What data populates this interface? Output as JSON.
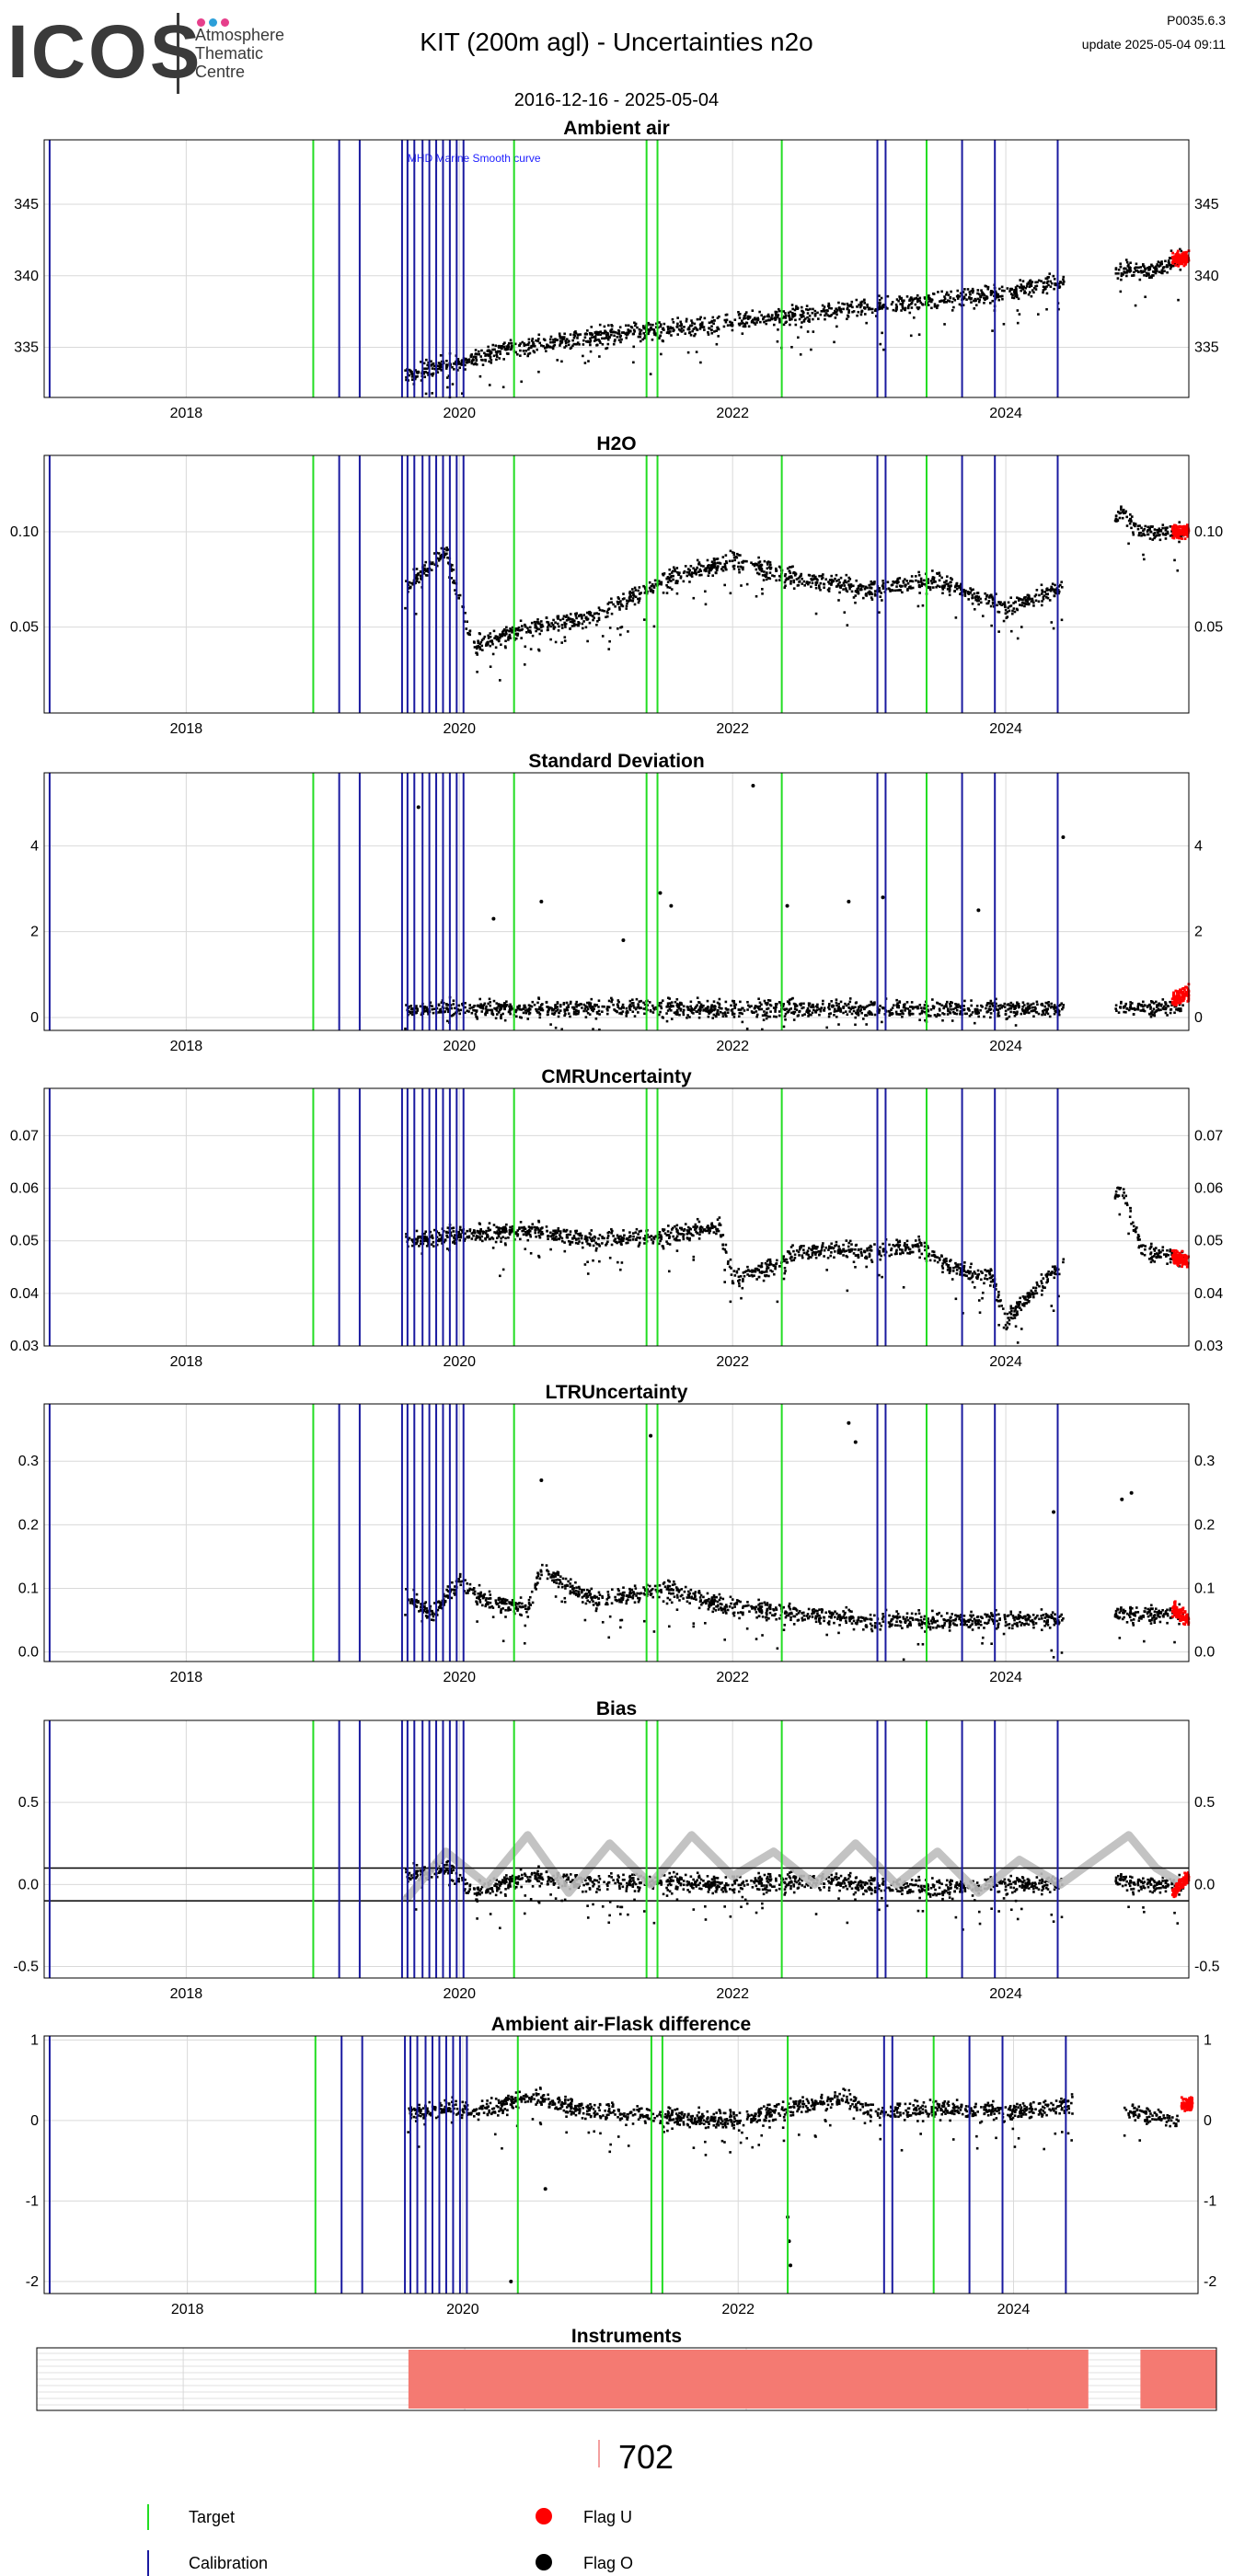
{
  "header": {
    "logo_text": "ICOS",
    "logo_subtitle": [
      "Atmosphere",
      "Thematic",
      "Centre"
    ],
    "logo_dot_colors": [
      "#e63f8b",
      "#2c9fd9",
      "#e63f8b"
    ],
    "title": "KIT  (200m agl) - Uncertainties n2o",
    "date_range": "2016-12-16 - 2025-05-04",
    "version": "P0035.6.3",
    "update": "update  2025-05-04 09:11"
  },
  "colors": {
    "target": "#22dd22",
    "calibration": "#1a1aa0",
    "flag_u": "#ff0000",
    "flag_o": "#000000",
    "smooth": "#bdbdbd",
    "instrument": "#f47a72",
    "grid": "#d9d9d9"
  },
  "x_axis": {
    "start": 2016.96,
    "end": 2025.34,
    "ticks": [
      2018,
      2020,
      2022,
      2024
    ],
    "tick_labels": [
      "2018",
      "2020",
      "2022",
      "2024"
    ]
  },
  "events": {
    "target": [
      2018.93,
      2020.4,
      2021.37,
      2021.45,
      2022.36,
      2023.42
    ],
    "calibration": [
      2017.0,
      2019.12,
      2019.27,
      2019.58,
      2019.62,
      2019.67,
      2019.73,
      2019.78,
      2019.83,
      2019.88,
      2019.93,
      2019.98,
      2020.03,
      2023.06,
      2023.12,
      2023.68,
      2023.92,
      2024.38
    ]
  },
  "chart_data": [
    {
      "type": "scatter",
      "title": "Ambient air",
      "ylim": [
        331.5,
        349.5
      ],
      "yticks": [
        335,
        340,
        345
      ],
      "ytick_labels": [
        "335",
        "340",
        "345"
      ],
      "annotation": "MHD Marine Smooth curve",
      "x": [
        2019.6,
        2019.8,
        2020.0,
        2020.3,
        2020.6,
        2021.0,
        2021.5,
        2022.0,
        2022.5,
        2023.0,
        2023.5,
        2024.0,
        2024.4,
        2024.85,
        2025.1,
        2025.2,
        2025.3
      ],
      "y": [
        333.0,
        333.5,
        333.9,
        334.8,
        335.2,
        335.8,
        336.2,
        336.8,
        337.3,
        337.8,
        338.3,
        338.8,
        339.6,
        340.5,
        340.3,
        341.0,
        341.2
      ],
      "flag_u_x": [
        2025.22,
        2025.34
      ],
      "flag_u_y": [
        341.0,
        341.3
      ]
    },
    {
      "type": "scatter",
      "title": "H2O",
      "ylim": [
        0.005,
        0.14
      ],
      "yticks": [
        0.05,
        0.1
      ],
      "ytick_labels": [
        "0.05",
        "0.10"
      ],
      "x": [
        2019.6,
        2019.9,
        2020.1,
        2020.5,
        2021.0,
        2021.5,
        2022.0,
        2022.5,
        2023.0,
        2023.5,
        2024.0,
        2024.4,
        2024.85,
        2025.0,
        2025.3
      ],
      "y": [
        0.07,
        0.09,
        0.04,
        0.05,
        0.055,
        0.075,
        0.085,
        0.075,
        0.07,
        0.075,
        0.06,
        0.07,
        0.11,
        0.1,
        0.1
      ],
      "flag_u_x": [
        2025.22,
        2025.34
      ],
      "flag_u_y": [
        0.1,
        0.1
      ]
    },
    {
      "type": "scatter",
      "title": "Standard Deviation",
      "ylim": [
        -0.3,
        5.7
      ],
      "yticks": [
        0,
        2,
        4
      ],
      "ytick_labels": [
        "0",
        "2",
        "4"
      ],
      "x": [
        2019.6,
        2020.0,
        2020.5,
        2021.0,
        2021.5,
        2022.0,
        2022.5,
        2023.0,
        2023.5,
        2024.0,
        2024.4,
        2024.9,
        2025.3
      ],
      "y": [
        0.2,
        0.2,
        0.2,
        0.2,
        0.25,
        0.2,
        0.2,
        0.2,
        0.2,
        0.2,
        0.2,
        0.2,
        0.3
      ],
      "outliers_x": [
        2019.7,
        2020.25,
        2020.6,
        2021.2,
        2021.47,
        2021.55,
        2022.15,
        2022.4,
        2022.85,
        2023.1,
        2023.8,
        2024.42
      ],
      "outliers_y": [
        4.9,
        2.3,
        2.7,
        1.8,
        2.9,
        2.6,
        5.4,
        2.6,
        2.7,
        2.8,
        2.5,
        4.2
      ],
      "flag_u_x": [
        2025.22,
        2025.34
      ],
      "flag_u_y": [
        0.4,
        0.6
      ]
    },
    {
      "type": "scatter",
      "title": "CMRUncertainty",
      "ylim": [
        0.03,
        0.079
      ],
      "yticks": [
        0.03,
        0.04,
        0.05,
        0.06,
        0.07
      ],
      "ytick_labels": [
        "0.03",
        "0.04",
        "0.05",
        "0.06",
        "0.07"
      ],
      "x": [
        2019.6,
        2020.0,
        2020.5,
        2021.0,
        2021.5,
        2021.9,
        2022.0,
        2022.3,
        2022.5,
        2023.0,
        2023.4,
        2023.6,
        2023.9,
        2024.0,
        2024.4,
        2024.85,
        2025.0,
        2025.3
      ],
      "y": [
        0.05,
        0.051,
        0.052,
        0.05,
        0.051,
        0.053,
        0.043,
        0.045,
        0.048,
        0.048,
        0.049,
        0.045,
        0.043,
        0.035,
        0.045,
        0.06,
        0.048,
        0.047
      ],
      "flag_u_x": [
        2025.22,
        2025.34
      ],
      "flag_u_y": [
        0.047,
        0.046
      ]
    },
    {
      "type": "scatter",
      "title": "LTRUncertainty",
      "ylim": [
        -0.015,
        0.39
      ],
      "yticks": [
        0.0,
        0.1,
        0.2,
        0.3
      ],
      "ytick_labels": [
        "0.0",
        "0.1",
        "0.2",
        "0.3"
      ],
      "x": [
        2019.6,
        2019.8,
        2020.0,
        2020.2,
        2020.5,
        2020.6,
        2021.0,
        2021.5,
        2022.0,
        2022.5,
        2023.0,
        2023.5,
        2024.0,
        2024.4,
        2024.9,
        2025.3
      ],
      "y": [
        0.09,
        0.06,
        0.11,
        0.08,
        0.07,
        0.13,
        0.08,
        0.1,
        0.07,
        0.06,
        0.05,
        0.05,
        0.05,
        0.05,
        0.06,
        0.06
      ],
      "outliers_x": [
        2020.6,
        2021.4,
        2022.85,
        2022.9,
        2024.35,
        2024.85,
        2024.92
      ],
      "outliers_y": [
        0.27,
        0.34,
        0.36,
        0.33,
        0.22,
        0.24,
        0.25
      ],
      "flag_u_x": [
        2025.22,
        2025.34
      ],
      "flag_u_y": [
        0.07,
        0.05
      ]
    },
    {
      "type": "scatter",
      "title": "Bias",
      "ylim": [
        -0.57,
        1.0
      ],
      "yticks": [
        -0.5,
        0.0,
        0.5
      ],
      "ytick_labels": [
        "-0.5",
        "0.0",
        "0.5"
      ],
      "hlines": [
        -0.1,
        0.1
      ],
      "x": [
        2019.6,
        2019.9,
        2020.1,
        2020.5,
        2021.0,
        2021.5,
        2022.0,
        2022.5,
        2023.0,
        2023.5,
        2024.0,
        2024.4,
        2024.85,
        2025.0,
        2025.3
      ],
      "y": [
        0.05,
        0.1,
        -0.05,
        0.05,
        0.0,
        0.02,
        0.0,
        0.02,
        0.0,
        -0.02,
        0.0,
        0.0,
        0.02,
        0.0,
        0.0
      ],
      "smooth_x": [
        2019.6,
        2019.9,
        2020.2,
        2020.5,
        2020.8,
        2021.1,
        2021.4,
        2021.7,
        2022.0,
        2022.3,
        2022.6,
        2022.9,
        2023.2,
        2023.5,
        2023.8,
        2024.1,
        2024.4,
        2024.9,
        2025.1,
        2025.3
      ],
      "smooth_y": [
        -0.1,
        0.2,
        0.0,
        0.3,
        -0.05,
        0.25,
        0.0,
        0.3,
        0.05,
        0.2,
        0.0,
        0.25,
        0.0,
        0.2,
        -0.05,
        0.15,
        0.0,
        0.3,
        0.1,
        0.0
      ],
      "flag_u_x": [
        2025.22,
        2025.34
      ],
      "flag_u_y": [
        -0.05,
        0.05
      ]
    },
    {
      "type": "scatter",
      "title": "Ambient air-Flask difference",
      "ylim": [
        -2.15,
        1.05
      ],
      "yticks": [
        -2,
        -1,
        0,
        1
      ],
      "ytick_labels": [
        "-2",
        "-1",
        "0",
        "1"
      ],
      "x": [
        2019.6,
        2019.9,
        2020.1,
        2020.5,
        2020.7,
        2021.0,
        2021.5,
        2022.0,
        2022.5,
        2022.8,
        2023.0,
        2023.5,
        2024.0,
        2024.4,
        2024.9,
        2025.2
      ],
      "y": [
        0.1,
        0.15,
        0.1,
        0.3,
        0.2,
        0.1,
        0.05,
        0.0,
        0.2,
        0.25,
        0.1,
        0.15,
        0.1,
        0.2,
        0.1,
        0.0
      ],
      "outliers_x": [
        2020.35,
        2020.6,
        2022.36,
        2022.37,
        2022.38
      ],
      "outliers_y": [
        -2.0,
        -0.85,
        -1.2,
        -1.5,
        -1.8
      ],
      "flag_u_x": [
        2025.22
      ],
      "flag_u_y": [
        0.2
      ]
    },
    {
      "type": "bar",
      "title": "Instruments",
      "segments": [
        [
          2019.6,
          2024.43
        ],
        [
          2024.8,
          2025.34
        ]
      ]
    }
  ],
  "legend": {
    "count": "702",
    "target_label": "Target",
    "calibration_label": "Calibration",
    "flag_u_label": "Flag U",
    "flag_o_label": "Flag O"
  }
}
